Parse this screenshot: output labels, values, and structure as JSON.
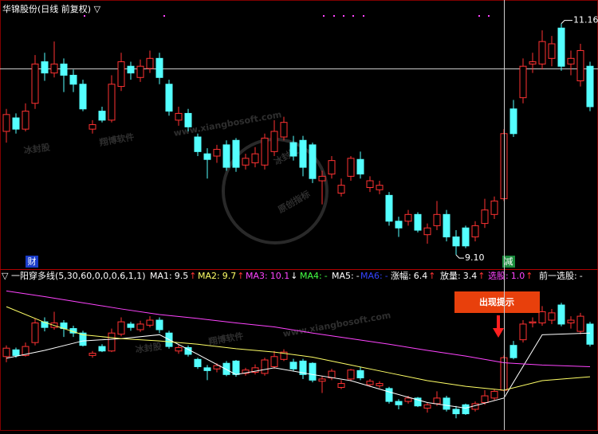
{
  "chart_data": [
    {
      "type": "candlestick",
      "title": "华锦股份(日线 前复权) ▽",
      "open": [
        10.2,
        10.32,
        10.22,
        10.45,
        10.82,
        10.72,
        10.8,
        10.7,
        10.62,
        10.22,
        10.38,
        10.3,
        10.6,
        10.78,
        10.68,
        10.76,
        10.85,
        10.62,
        10.3,
        10.36,
        10.15,
        10.0,
        9.98,
        10.08,
        10.12,
        9.9,
        9.92,
        9.9,
        10.02,
        10.15,
        10.1,
        10.12,
        10.08,
        9.76,
        9.82,
        9.65,
        9.8,
        9.95,
        9.7,
        9.68,
        9.63,
        9.4,
        9.4,
        9.46,
        9.28,
        9.36,
        9.46,
        9.26,
        9.34,
        9.26,
        9.38,
        9.46,
        9.6,
        10.4,
        10.5,
        10.8,
        10.8,
        10.85,
        11.12,
        10.8,
        10.65,
        10.78
      ],
      "high": [
        10.4,
        10.36,
        10.45,
        10.88,
        10.9,
        11.0,
        10.85,
        10.75,
        10.66,
        10.3,
        10.42,
        10.7,
        10.9,
        10.82,
        10.84,
        10.92,
        10.9,
        10.66,
        10.42,
        10.4,
        10.18,
        10.05,
        10.08,
        10.12,
        10.14,
        10.0,
        10.06,
        10.18,
        10.3,
        10.33,
        10.16,
        10.16,
        10.1,
        9.85,
        9.98,
        9.78,
        9.98,
        10.02,
        9.8,
        9.76,
        9.66,
        9.44,
        9.5,
        9.48,
        9.38,
        9.58,
        9.5,
        9.32,
        9.36,
        9.4,
        9.6,
        9.62,
        10.22,
        10.48,
        10.85,
        10.9,
        11.1,
        11.05,
        11.16,
        10.92,
        10.98,
        10.82
      ],
      "low": [
        10.1,
        10.18,
        10.2,
        10.4,
        10.65,
        10.68,
        10.55,
        10.55,
        10.38,
        10.18,
        10.28,
        10.28,
        10.56,
        10.66,
        10.64,
        10.72,
        10.62,
        10.34,
        10.25,
        10.2,
        9.98,
        9.78,
        9.92,
        9.85,
        9.84,
        9.86,
        9.88,
        9.86,
        9.98,
        10.12,
        9.94,
        9.8,
        9.74,
        9.55,
        9.78,
        9.62,
        9.76,
        9.78,
        9.66,
        9.64,
        9.36,
        9.26,
        9.36,
        9.3,
        9.2,
        9.32,
        9.22,
        9.1,
        9.16,
        9.22,
        9.34,
        9.42,
        9.58,
        10.15,
        10.45,
        10.72,
        10.75,
        10.78,
        10.74,
        10.7,
        10.6,
        10.38
      ],
      "close": [
        10.35,
        10.22,
        10.38,
        10.8,
        10.72,
        10.8,
        10.7,
        10.62,
        10.4,
        10.26,
        10.3,
        10.62,
        10.82,
        10.72,
        10.78,
        10.85,
        10.68,
        10.38,
        10.36,
        10.24,
        10.02,
        9.95,
        10.04,
        9.88,
        9.88,
        9.96,
        10.0,
        10.14,
        10.2,
        10.28,
        9.98,
        9.88,
        9.78,
        9.8,
        9.94,
        9.72,
        9.96,
        9.82,
        9.76,
        9.72,
        9.4,
        9.34,
        9.46,
        9.32,
        9.34,
        9.46,
        9.26,
        9.18,
        9.18,
        9.36,
        9.5,
        9.58,
        10.18,
        10.18,
        10.78,
        10.82,
        11.0,
        10.98,
        10.78,
        10.85,
        10.92,
        10.42
      ],
      "ylim": [
        8.98,
        11.37
      ],
      "up_color": "#ff3232",
      "down_color": "#54ffff",
      "high_label": 11.16,
      "low_label": {
        "value": 9.1,
        "label": "9.10"
      },
      "markers": [
        "财",
        "减"
      ],
      "watermarks": [
        "冰封股",
        "翔博软件",
        "www.xiangbosoft.com",
        "冰封股",
        "原创指标"
      ]
    },
    {
      "type": "indicator",
      "title": "▽ 一阳穿多线(5,30,60,0,0,0,6,1,1)",
      "ylim": [
        8.89,
        11.66
      ],
      "x": [
        0,
        4,
        8,
        12,
        16,
        20,
        24,
        28,
        32,
        36,
        40,
        44,
        48,
        52,
        56,
        61
      ],
      "legend": [
        {
          "name": "MA1:",
          "value": 9.5,
          "arrow": "↑",
          "color": "#ffffff",
          "values": [
            10.17,
            10.31,
            10.48,
            10.52,
            10.59,
            10.24,
            9.88,
            10.0,
            9.88,
            9.77,
            9.57,
            9.38,
            9.28,
            9.46,
            10.59,
            10.62
          ]
        },
        {
          "name": "MA2:",
          "value": 9.7,
          "arrow": "↑",
          "color": "#ffff66",
          "values": [
            11.09,
            10.81,
            10.59,
            10.52,
            10.48,
            10.42,
            10.34,
            10.28,
            10.19,
            10.05,
            9.91,
            9.77,
            9.67,
            9.6,
            9.77,
            9.84
          ]
        },
        {
          "name": "MA3:",
          "value": 10.1,
          "arrow": "↓",
          "color": "#ff44ff",
          "values": [
            11.37,
            11.27,
            11.16,
            11.05,
            10.95,
            10.88,
            10.8,
            10.73,
            10.62,
            10.52,
            10.42,
            10.31,
            10.21,
            10.09,
            10.05,
            10.02
          ]
        },
        {
          "name": "MA4:",
          "value": "-",
          "color": "#44ff44"
        },
        {
          "name": "MA5:",
          "value": "-",
          "color": "#ffffff"
        },
        {
          "name": "MA6:",
          "value": "-",
          "color": "#3344ff"
        },
        {
          "name": "涨幅:",
          "value": 6.4,
          "arrow": "↑",
          "color": "#ffffff"
        },
        {
          "name": "放量:",
          "value": 3.4,
          "arrow": "↑",
          "color": "#ffffff"
        },
        {
          "name": "选股:",
          "value": {
            "value": 1,
            "label": "1.0"
          },
          "arrow": "↑",
          "color": "#ff44ff"
        },
        {
          "name": "前一选股:",
          "value": "-",
          "color": "#ffffff"
        }
      ],
      "signal": "出现提示",
      "watermarks": [
        "冰封股",
        "翔博软件",
        "www.xiangbosoft.com"
      ]
    }
  ]
}
